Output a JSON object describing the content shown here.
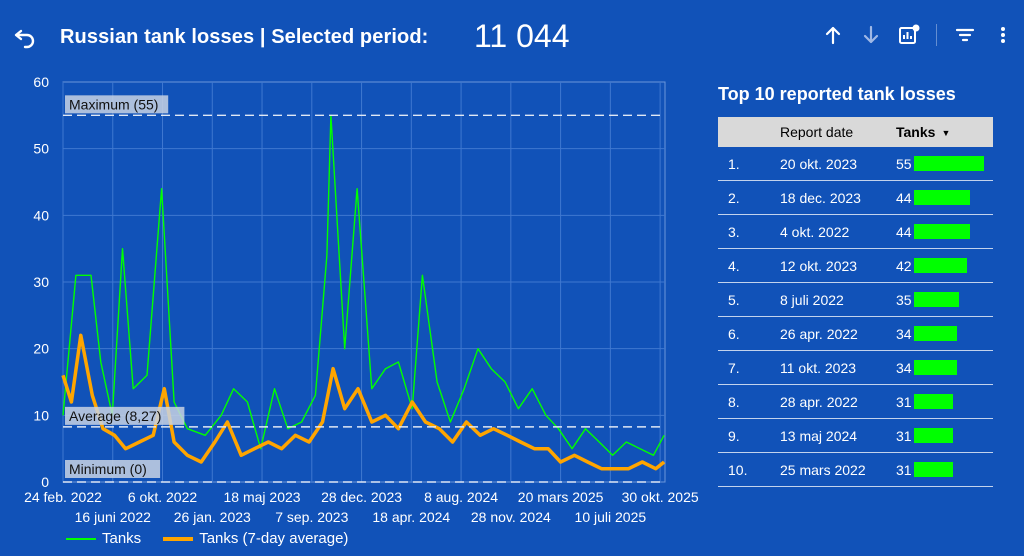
{
  "header": {
    "title": "Russian tank losses | Selected period:",
    "total": "11 044",
    "back_icon": "undo-icon",
    "toolbar_icons": [
      "arrow-up-icon",
      "arrow-down-icon",
      "chart-settings-icon",
      "filter-icon",
      "more-vert-icon"
    ]
  },
  "colors": {
    "background": "#1152b8",
    "tanks": "#00ff00",
    "avg": "#ffa500",
    "gridline": "#3f78d0",
    "reference": "#e0e8f5",
    "ref_label_bg": "#c8d2e3"
  },
  "chart_data": {
    "type": "line",
    "ylim": [
      0,
      60
    ],
    "yticks": [
      0,
      10,
      20,
      30,
      40,
      50,
      60
    ],
    "xlim": [
      "2022-02-24",
      "2025-11-10"
    ],
    "xticks_row1": [
      "24 feb. 2022",
      "6 okt. 2022",
      "18 maj 2023",
      "28 dec. 2023",
      "8 aug. 2024",
      "20 mars 2025",
      "30 okt. 2025"
    ],
    "xticks_row2": [
      "16 juni 2022",
      "26 jan. 2023",
      "7 sep. 2023",
      "18 apr. 2024",
      "28 nov. 2024",
      "10 juli 2025"
    ],
    "reference_lines": [
      {
        "label": "Maximum (55)",
        "value": 55
      },
      {
        "label": "Average (8,27)",
        "value": 8.27
      },
      {
        "label": "Minimum (0)",
        "value": 0
      }
    ],
    "series": [
      {
        "name": "Tanks",
        "x": [
          "2022-02-24",
          "2022-03-25",
          "2022-04-28",
          "2022-05-20",
          "2022-06-15",
          "2022-07-08",
          "2022-08-01",
          "2022-09-01",
          "2022-10-04",
          "2022-11-01",
          "2022-12-01",
          "2023-01-10",
          "2023-02-15",
          "2023-03-15",
          "2023-04-15",
          "2023-05-15",
          "2023-06-15",
          "2023-07-15",
          "2023-08-15",
          "2023-09-15",
          "2023-10-11",
          "2023-10-20",
          "2023-11-20",
          "2023-12-18",
          "2024-01-20",
          "2024-02-20",
          "2024-03-20",
          "2024-04-20",
          "2024-05-13",
          "2024-06-15",
          "2024-07-15",
          "2024-08-15",
          "2024-09-15",
          "2024-10-15",
          "2024-11-15",
          "2024-12-15",
          "2025-01-15",
          "2025-02-15",
          "2025-03-15",
          "2025-04-15",
          "2025-05-15",
          "2025-06-15",
          "2025-07-15",
          "2025-08-15",
          "2025-09-15",
          "2025-10-15",
          "2025-11-08"
        ],
        "values": [
          10,
          31,
          31,
          18,
          10,
          35,
          14,
          16,
          44,
          12,
          8,
          7,
          10,
          14,
          12,
          5,
          14,
          8,
          9,
          13,
          34,
          55,
          20,
          44,
          14,
          17,
          18,
          11,
          31,
          15,
          9,
          14,
          20,
          17,
          15,
          11,
          14,
          10,
          8,
          5,
          8,
          6,
          4,
          6,
          5,
          4,
          7
        ]
      },
      {
        "name": "Tanks (7-day average)",
        "x": [
          "2022-02-24",
          "2022-03-15",
          "2022-04-05",
          "2022-05-01",
          "2022-05-25",
          "2022-06-20",
          "2022-07-15",
          "2022-08-15",
          "2022-09-15",
          "2022-10-10",
          "2022-11-01",
          "2022-12-01",
          "2023-01-01",
          "2023-02-01",
          "2023-03-01",
          "2023-04-01",
          "2023-05-01",
          "2023-06-01",
          "2023-07-01",
          "2023-08-01",
          "2023-09-01",
          "2023-10-01",
          "2023-10-25",
          "2023-11-20",
          "2023-12-20",
          "2024-01-20",
          "2024-02-20",
          "2024-03-20",
          "2024-04-20",
          "2024-05-20",
          "2024-06-20",
          "2024-07-20",
          "2024-08-20",
          "2024-09-20",
          "2024-10-20",
          "2024-11-20",
          "2024-12-20",
          "2025-01-20",
          "2025-02-20",
          "2025-03-20",
          "2025-04-20",
          "2025-05-20",
          "2025-06-20",
          "2025-07-20",
          "2025-08-20",
          "2025-09-20",
          "2025-10-20",
          "2025-11-08"
        ],
        "values": [
          16,
          12,
          22,
          13,
          8,
          7,
          5,
          6,
          7,
          14,
          6,
          4,
          3,
          6,
          9,
          4,
          5,
          6,
          5,
          7,
          6,
          9,
          17,
          11,
          14,
          9,
          10,
          8,
          12,
          9,
          8,
          6,
          9,
          7,
          8,
          7,
          6,
          5,
          5,
          3,
          4,
          3,
          2,
          2,
          2,
          3,
          2,
          3
        ]
      }
    ]
  },
  "legend": {
    "tanks": "Tanks",
    "avg": "Tanks (7-day average)"
  },
  "table": {
    "title": "Top 10 reported tank losses",
    "col_date": "Report date",
    "col_tanks": "Tanks",
    "max": 55,
    "rows": [
      {
        "idx": "1.",
        "date": "20 okt. 2023",
        "value": 55
      },
      {
        "idx": "2.",
        "date": "18 dec. 2023",
        "value": 44
      },
      {
        "idx": "3.",
        "date": "4 okt. 2022",
        "value": 44
      },
      {
        "idx": "4.",
        "date": "12 okt. 2023",
        "value": 42
      },
      {
        "idx": "5.",
        "date": "8 juli 2022",
        "value": 35
      },
      {
        "idx": "6.",
        "date": "26 apr. 2022",
        "value": 34
      },
      {
        "idx": "7.",
        "date": "11 okt. 2023",
        "value": 34
      },
      {
        "idx": "8.",
        "date": "28 apr. 2022",
        "value": 31
      },
      {
        "idx": "9.",
        "date": "13 maj 2024",
        "value": 31
      },
      {
        "idx": "10.",
        "date": "25 mars 2022",
        "value": 31
      }
    ]
  }
}
